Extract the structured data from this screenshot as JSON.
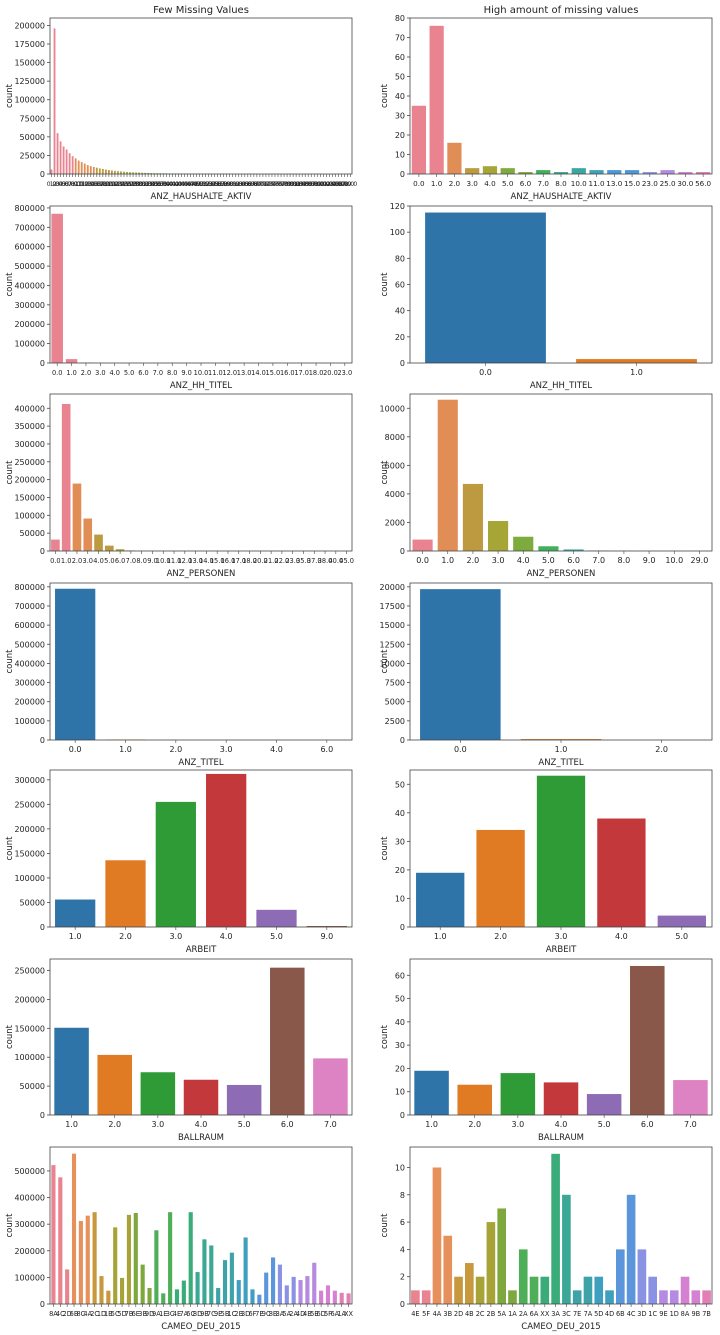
{
  "chart_data": [
    {
      "type": "bar",
      "title": "Few Missing Values",
      "xlabel": "ANZ_HAUSHALTE_AKTIV",
      "ylabel": "count",
      "ylim": [
        0,
        210000
      ],
      "yticks": [
        0,
        25000,
        50000,
        75000,
        100000,
        125000,
        150000,
        175000,
        200000
      ],
      "categories": [
        "0.0",
        "1.0",
        "2.0",
        "3.0",
        "4.0",
        "5.0",
        "6.0",
        "7.0",
        "8.0",
        "9.0",
        "10.0",
        "11.0",
        "12.0",
        "13.0",
        "14.0",
        "15.0",
        "16.0",
        "17.0",
        "18.0",
        "19.0",
        "20.0",
        "21.0",
        "22.0",
        "23.0",
        "24.0",
        "25.0",
        "26.0",
        "27.0",
        "28.0",
        "29.0",
        "30.0",
        "31.0",
        "32.0",
        "33.0",
        "34.0",
        "35.0",
        "36.0",
        "37.0",
        "38.0",
        "39.0",
        "40.0",
        "41.0",
        "42.0",
        "43.0",
        "44.0",
        "45.0",
        "46.0",
        "47.0",
        "48.0",
        "49.0",
        "50.0",
        "51.0",
        "52.0",
        "53.0",
        "54.0",
        "55.0",
        "56.0",
        "57.0",
        "58.0",
        "59.0",
        "60.0",
        "61.0",
        "62.0",
        "63.0",
        "64.0",
        "65.0",
        "66.0",
        "67.0",
        "68.0",
        "69.0",
        "70.0",
        "71.0",
        "72.0",
        "73.0",
        "74.0",
        "75.0",
        "76.0",
        "77.0",
        "78.0",
        "79.0",
        "80.0",
        "81.0",
        "82.0",
        "83.0",
        "84.0",
        "85.0",
        "86.0",
        "87.0",
        "88.0",
        "89.0",
        "90.0",
        "91.0",
        "92.0",
        "93.0",
        "94.0",
        "95.0",
        "96.0",
        "97.0",
        "98.0",
        "99.0"
      ],
      "values": [
        6000,
        196000,
        55000,
        44000,
        37000,
        33000,
        28000,
        24000,
        21000,
        18000,
        16000,
        14000,
        12000,
        10500,
        9500,
        8500,
        7500,
        6800,
        6000,
        5400,
        4800,
        4300,
        3900,
        3500,
        3100,
        2800,
        2500,
        2300,
        2100,
        1900,
        1700,
        1550,
        1400,
        1280,
        1160,
        1050,
        950,
        870,
        790,
        720,
        650,
        600,
        550,
        500,
        460,
        420,
        380,
        350,
        320,
        300,
        270,
        250,
        230,
        210,
        195,
        180,
        165,
        150,
        140,
        130,
        120,
        110,
        100,
        92,
        85,
        78,
        72,
        66,
        60,
        55,
        50,
        46,
        42,
        39,
        36,
        33,
        30,
        28,
        26,
        24,
        22,
        20,
        18,
        17,
        16,
        15,
        14,
        13,
        12,
        11,
        10,
        9,
        8,
        8,
        7,
        7,
        6,
        6,
        5,
        5
      ],
      "show_tick_labels": false
    },
    {
      "type": "bar",
      "title": "High amount of missing values",
      "xlabel": "ANZ_HAUSHALTE_AKTIV",
      "ylabel": "count",
      "ylim": [
        0,
        80
      ],
      "yticks": [
        0,
        10,
        20,
        30,
        40,
        50,
        60,
        70,
        80
      ],
      "categories": [
        "0.0",
        "1.0",
        "2.0",
        "3.0",
        "4.0",
        "5.0",
        "6.0",
        "7.0",
        "8.0",
        "10.0",
        "11.0",
        "13.0",
        "15.0",
        "23.0",
        "25.0",
        "30.0",
        "56.0"
      ],
      "values": [
        35,
        76,
        16,
        3,
        4,
        3,
        1,
        2,
        1,
        3,
        2,
        2,
        2,
        1,
        2,
        1,
        1
      ]
    },
    {
      "type": "bar",
      "title": "",
      "xlabel": "ANZ_HH_TITEL",
      "ylabel": "count",
      "ylim": [
        0,
        810000
      ],
      "yticks": [
        0,
        100000,
        200000,
        300000,
        400000,
        500000,
        600000,
        700000,
        800000
      ],
      "categories": [
        "0.0",
        "1.0",
        "2.0",
        "3.0",
        "4.0",
        "5.0",
        "6.0",
        "7.0",
        "8.0",
        "9.0",
        "10.0",
        "11.0",
        "12.0",
        "13.0",
        "14.0",
        "15.0",
        "16.0",
        "17.0",
        "18.0",
        "20.0",
        "23.0"
      ],
      "values": [
        770000,
        20000,
        2000,
        600,
        300,
        150,
        100,
        80,
        60,
        40,
        30,
        25,
        20,
        15,
        12,
        10,
        8,
        6,
        5,
        4,
        3
      ]
    },
    {
      "type": "bar",
      "title": "",
      "xlabel": "ANZ_HH_TITEL",
      "ylabel": "count",
      "ylim": [
        0,
        120
      ],
      "yticks": [
        0,
        20,
        40,
        60,
        80,
        100,
        120
      ],
      "categories": [
        "0.0",
        "1.0"
      ],
      "values": [
        115,
        3
      ]
    },
    {
      "type": "bar",
      "title": "",
      "xlabel": "ANZ_PERSONEN",
      "ylabel": "count",
      "ylim": [
        0,
        440000
      ],
      "yticks": [
        0,
        50000,
        100000,
        150000,
        200000,
        250000,
        300000,
        350000,
        400000
      ],
      "categories": [
        "0.0",
        "1.0",
        "2.0",
        "3.0",
        "4.0",
        "5.0",
        "6.0",
        "7.0",
        "8.0",
        "9.0",
        "10.0",
        "11.0",
        "12.0",
        "13.0",
        "14.0",
        "15.0",
        "16.0",
        "17.0",
        "18.0",
        "20.0",
        "21.0",
        "22.0",
        "23.0",
        "35.0",
        "37.0",
        "38.0",
        "40.0",
        "45.0"
      ],
      "tick_labels": [
        "0.0",
        "1.0",
        "2.0",
        "3.0",
        "4.0",
        "5.0",
        "6.0",
        "7.0",
        "8.0",
        "9.0",
        "10.0",
        "11.0",
        "12.0",
        "13.0",
        "14.0",
        "15.0",
        "16.0",
        "17.0",
        "18.0",
        "20.0",
        "21.0",
        "22.0",
        "23.0",
        "35.0",
        "37.0",
        "38.0",
        "40.0",
        "45.0"
      ],
      "values": [
        32000,
        412000,
        189000,
        91000,
        46000,
        15000,
        5000,
        1500,
        600,
        300,
        150,
        100,
        80,
        60,
        50,
        40,
        30,
        25,
        20,
        15,
        12,
        10,
        8,
        5,
        4,
        3,
        2,
        2
      ]
    },
    {
      "type": "bar",
      "title": "",
      "xlabel": "ANZ_PERSONEN",
      "ylabel": "count",
      "ylim": [
        0,
        11000
      ],
      "yticks": [
        0,
        2000,
        4000,
        6000,
        8000,
        10000
      ],
      "categories": [
        "0.0",
        "1.0",
        "2.0",
        "3.0",
        "4.0",
        "5.0",
        "6.0",
        "7.0",
        "8.0",
        "9.0",
        "10.0",
        "29.0"
      ],
      "values": [
        800,
        10600,
        4700,
        2100,
        1000,
        330,
        110,
        30,
        10,
        5,
        3,
        2
      ]
    },
    {
      "type": "bar",
      "title": "",
      "xlabel": "ANZ_TITEL",
      "ylabel": "count",
      "ylim": [
        0,
        820000
      ],
      "yticks": [
        0,
        100000,
        200000,
        300000,
        400000,
        500000,
        600000,
        700000,
        800000
      ],
      "categories": [
        "0.0",
        "1.0",
        "2.0",
        "3.0",
        "4.0",
        "6.0"
      ],
      "values": [
        790000,
        2500,
        200,
        50,
        10,
        5
      ]
    },
    {
      "type": "bar",
      "title": "",
      "xlabel": "ANZ_TITEL",
      "ylabel": "count",
      "ylim": [
        0,
        20500
      ],
      "yticks": [
        0,
        2500,
        5000,
        7500,
        10000,
        12500,
        15000,
        17500,
        20000
      ],
      "categories": [
        "0.0",
        "1.0",
        "2.0"
      ],
      "values": [
        19700,
        120,
        8
      ]
    },
    {
      "type": "bar",
      "title": "",
      "xlabel": "ARBEIT",
      "ylabel": "count",
      "ylim": [
        0,
        320000
      ],
      "yticks": [
        0,
        50000,
        100000,
        150000,
        200000,
        250000,
        300000
      ],
      "categories": [
        "1.0",
        "2.0",
        "3.0",
        "4.0",
        "5.0",
        "9.0"
      ],
      "values": [
        56000,
        136000,
        255000,
        312000,
        35000,
        2000
      ]
    },
    {
      "type": "bar",
      "title": "",
      "xlabel": "ARBEIT",
      "ylabel": "count",
      "ylim": [
        0,
        55
      ],
      "yticks": [
        0,
        10,
        20,
        30,
        40,
        50
      ],
      "categories": [
        "1.0",
        "2.0",
        "3.0",
        "4.0",
        "5.0"
      ],
      "values": [
        19,
        34,
        53,
        38,
        4
      ]
    },
    {
      "type": "bar",
      "title": "",
      "xlabel": "BALLRAUM",
      "ylabel": "count",
      "ylim": [
        0,
        270000
      ],
      "yticks": [
        0,
        50000,
        100000,
        150000,
        200000,
        250000
      ],
      "categories": [
        "1.0",
        "2.0",
        "3.0",
        "4.0",
        "5.0",
        "6.0",
        "7.0"
      ],
      "values": [
        151000,
        104000,
        74000,
        61000,
        52000,
        255000,
        98000
      ]
    },
    {
      "type": "bar",
      "title": "",
      "xlabel": "BALLRAUM",
      "ylabel": "count",
      "ylim": [
        0,
        67
      ],
      "yticks": [
        0,
        10,
        20,
        30,
        40,
        50,
        60
      ],
      "categories": [
        "1.0",
        "2.0",
        "3.0",
        "4.0",
        "5.0",
        "6.0",
        "7.0"
      ],
      "values": [
        19,
        13,
        18,
        14,
        9,
        64,
        15
      ]
    },
    {
      "type": "bar",
      "title": "",
      "xlabel": "CAMEO_DEU_2015",
      "ylabel": "count",
      "ylim": [
        0,
        590000
      ],
      "yticks": [
        0,
        100000,
        200000,
        300000,
        400000,
        500000
      ],
      "categories": [
        "8A",
        "4C",
        "2D",
        "6B",
        "8C",
        "4A",
        "2C",
        "1D",
        "1B",
        "5C",
        "5D",
        "7B",
        "6E",
        "3B",
        "9D",
        "9A",
        "1E",
        "3C",
        "4E",
        "7A",
        "6C",
        "8D",
        "9B",
        "7C",
        "9E",
        "5B",
        "1C",
        "2B",
        "3D",
        "6F",
        "7E",
        "9C",
        "8B",
        "3A",
        "5A",
        "2A",
        "4D",
        "4B",
        "5E",
        "6D",
        "5F",
        "6A",
        "1A",
        "XX"
      ],
      "tick_labels": [
        "8A",
        "4C",
        "2D",
        "6B",
        "8C",
        "4A",
        "2C",
        "1D",
        "1B",
        "5C",
        "5D",
        "7B",
        "6E",
        "3B",
        "9D",
        "9A",
        "1E",
        "3C",
        "4E",
        "7A",
        "6C",
        "8D",
        "9B",
        "7C",
        "9E",
        "5B",
        "1C",
        "2B",
        "3D",
        "6F",
        "7E",
        "9C",
        "8B",
        "3A",
        "5A",
        "2A",
        "4D",
        "4B",
        "5E",
        "6D",
        "5F",
        "6A",
        "1A",
        "XX"
      ],
      "values": [
        522000,
        476000,
        130000,
        565000,
        312000,
        332000,
        345000,
        105000,
        50000,
        288000,
        98000,
        335000,
        342000,
        148000,
        60000,
        277000,
        40000,
        345000,
        55000,
        88000,
        345000,
        120000,
        243000,
        220000,
        60000,
        165000,
        193000,
        90000,
        250000,
        55000,
        35000,
        118000,
        175000,
        148000,
        70000,
        102000,
        90000,
        105000,
        155000,
        50000,
        70000,
        50000,
        42000,
        40000
      ]
    },
    {
      "type": "bar",
      "title": "",
      "xlabel": "CAMEO_DEU_2015",
      "ylabel": "count",
      "ylim": [
        0,
        11.5
      ],
      "yticks": [
        0,
        2,
        4,
        6,
        8,
        10
      ],
      "categories": [
        "4E",
        "5F",
        "4A",
        "3B",
        "2D",
        "4B",
        "2C",
        "2B",
        "5A",
        "1A",
        "2A",
        "6A",
        "XX",
        "3A",
        "3C",
        "7E",
        "7A",
        "5D",
        "4D",
        "6B",
        "4C",
        "3D",
        "1C",
        "9E",
        "1D",
        "8A",
        "9B",
        "7B"
      ],
      "values": [
        1,
        1,
        10,
        5,
        2,
        3,
        2,
        6,
        7,
        1,
        4,
        2,
        2,
        11,
        8,
        1,
        2,
        2,
        1,
        4,
        8,
        4,
        2,
        1,
        1,
        2,
        1,
        1
      ]
    }
  ]
}
